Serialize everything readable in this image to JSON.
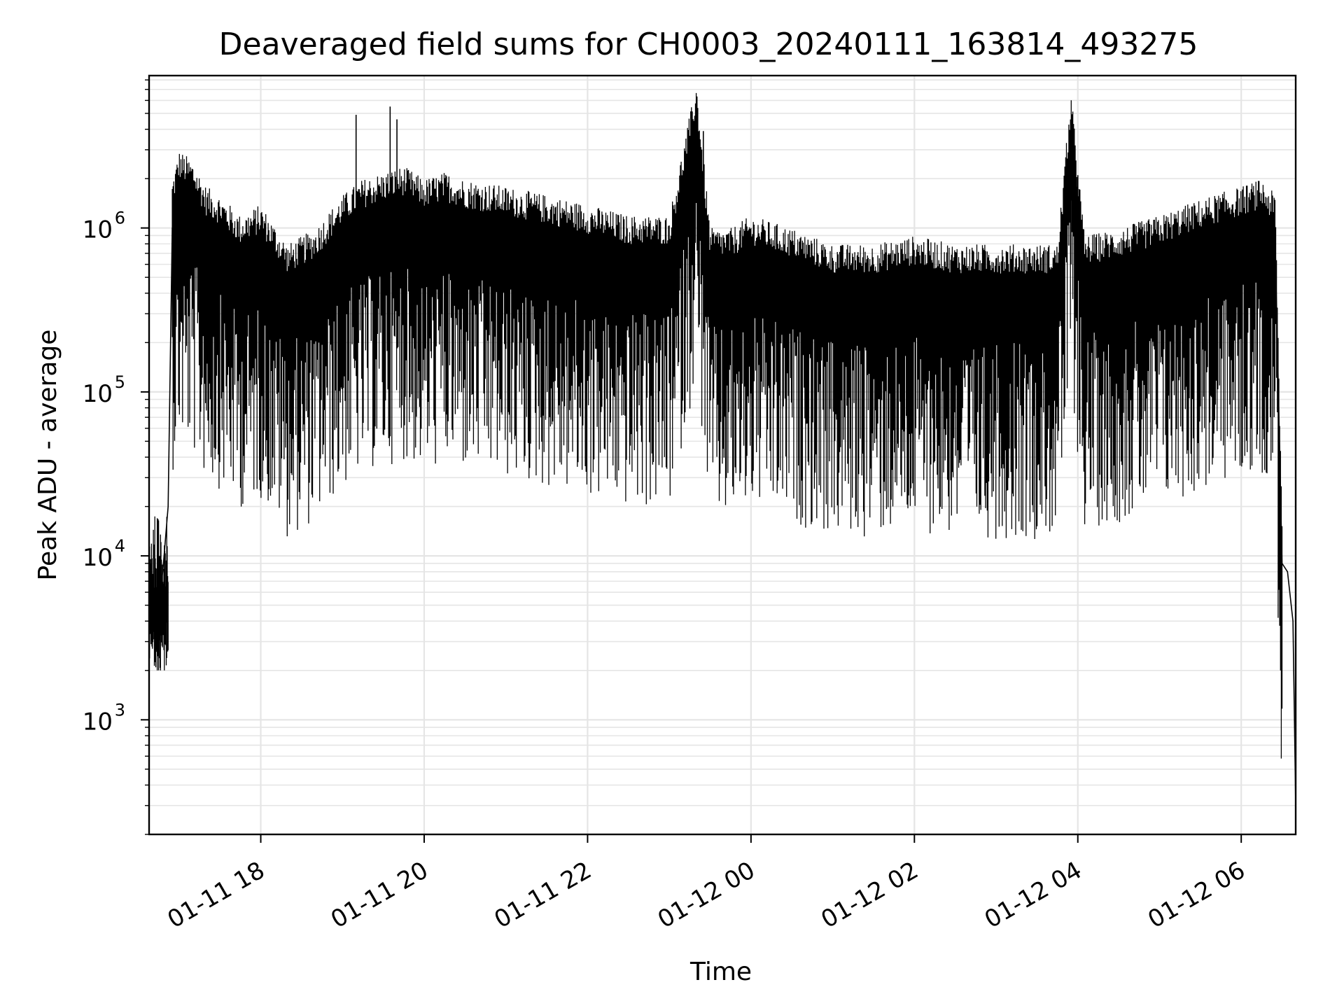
{
  "chart_data": {
    "type": "line",
    "title": "Deaveraged field sums for CH0003_20240111_163814_493275",
    "xlabel": "Time",
    "ylabel": "Peak ADU - average",
    "y_scale": "log",
    "ylim": [
      200,
      8500000
    ],
    "xlim": [
      "2024-01-11 16:38",
      "2024-01-12 06:40"
    ],
    "grid": true,
    "line_color": "#000000",
    "grid_color": "#e5e5e5",
    "x_ticks": [
      {
        "value": "2024-01-11 18:00",
        "label": "01-11 18"
      },
      {
        "value": "2024-01-11 20:00",
        "label": "01-11 20"
      },
      {
        "value": "2024-01-11 22:00",
        "label": "01-11 22"
      },
      {
        "value": "2024-01-12 00:00",
        "label": "01-12 00"
      },
      {
        "value": "2024-01-12 02:00",
        "label": "01-12 02"
      },
      {
        "value": "2024-01-12 04:00",
        "label": "01-12 04"
      },
      {
        "value": "2024-01-12 06:00",
        "label": "01-12 06"
      }
    ],
    "y_ticks": [
      {
        "value": 1000,
        "base": "10",
        "exp": "3"
      },
      {
        "value": 10000,
        "base": "10",
        "exp": "4"
      },
      {
        "value": 100000,
        "base": "10",
        "exp": "5"
      },
      {
        "value": 1000000,
        "base": "10",
        "exp": "6"
      }
    ],
    "series": [
      {
        "x": [
          "2024-01-11 16:38",
          "2024-01-11 16:43",
          "2024-01-11 16:48",
          "2024-01-11 16:52",
          "2024-01-11 16:55",
          "2024-01-11 17:00",
          "2024-01-11 17:10",
          "2024-01-11 17:20",
          "2024-01-11 17:30",
          "2024-01-11 17:45",
          "2024-01-11 18:00",
          "2024-01-11 18:20",
          "2024-01-11 18:40",
          "2024-01-11 19:00",
          "2024-01-11 19:15",
          "2024-01-11 19:30",
          "2024-01-11 19:45",
          "2024-01-11 20:00",
          "2024-01-11 20:15",
          "2024-01-11 20:30",
          "2024-01-11 21:00",
          "2024-01-11 21:30",
          "2024-01-11 22:00",
          "2024-01-11 22:30",
          "2024-01-11 23:00",
          "2024-01-11 23:20",
          "2024-01-11 23:30",
          "2024-01-11 23:45",
          "2024-01-12 00:00",
          "2024-01-12 00:30",
          "2024-01-12 01:00",
          "2024-01-12 01:30",
          "2024-01-12 02:00",
          "2024-01-12 02:30",
          "2024-01-12 03:00",
          "2024-01-12 03:30",
          "2024-01-12 03:45",
          "2024-01-12 03:55",
          "2024-01-12 04:05",
          "2024-01-12 04:30",
          "2024-01-12 05:00",
          "2024-01-12 05:20",
          "2024-01-12 05:40",
          "2024-01-12 06:00",
          "2024-01-12 06:15",
          "2024-01-12 06:25",
          "2024-01-12 06:30",
          "2024-01-12 06:34",
          "2024-01-12 06:38",
          "2024-01-12 06:40"
        ],
        "y": [
          5000,
          4000,
          8000,
          20000,
          1000000,
          1500000,
          1300000,
          900000,
          800000,
          600000,
          700000,
          400000,
          500000,
          800000,
          1000000,
          1100000,
          1200000,
          1000000,
          1100000,
          1000000,
          900000,
          800000,
          700000,
          600000,
          600000,
          3900000,
          500000,
          500000,
          600000,
          500000,
          400000,
          400000,
          450000,
          400000,
          400000,
          400000,
          400000,
          3400000,
          450000,
          500000,
          600000,
          700000,
          800000,
          900000,
          1000000,
          800000,
          9000,
          8000,
          4000,
          300
        ]
      }
    ]
  }
}
